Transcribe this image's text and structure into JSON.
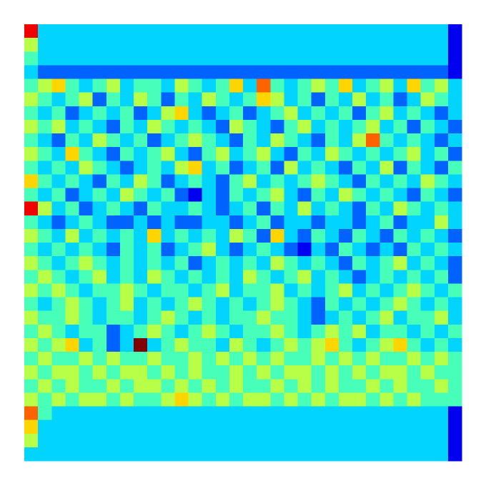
{
  "chart_data": {
    "type": "heatmap",
    "vlim": [
      0,
      9
    ],
    "colormap": "jet",
    "values": [
      [
        8,
        3,
        3,
        3,
        3,
        3,
        3,
        3,
        3,
        3,
        3,
        3,
        3,
        3,
        3,
        3,
        3,
        3,
        3,
        3,
        3,
        3,
        3,
        3,
        3,
        3,
        3,
        3,
        3,
        3,
        3,
        1
      ],
      [
        5,
        3,
        3,
        3,
        3,
        3,
        3,
        3,
        3,
        3,
        3,
        3,
        3,
        3,
        3,
        3,
        3,
        3,
        3,
        3,
        3,
        3,
        3,
        3,
        3,
        3,
        3,
        3,
        3,
        3,
        3,
        1
      ],
      [
        4,
        3,
        3,
        3,
        3,
        3,
        3,
        3,
        3,
        3,
        3,
        3,
        3,
        3,
        3,
        3,
        3,
        3,
        3,
        3,
        3,
        3,
        3,
        3,
        3,
        3,
        3,
        3,
        3,
        3,
        3,
        1
      ],
      [
        3,
        2,
        2,
        2,
        2,
        2,
        2,
        2,
        2,
        2,
        2,
        2,
        2,
        2,
        2,
        2,
        2,
        2,
        2,
        2,
        2,
        2,
        2,
        2,
        2,
        2,
        2,
        2,
        2,
        2,
        2,
        1
      ],
      [
        4,
        5,
        6,
        4,
        3,
        4,
        5,
        3,
        4,
        4,
        3,
        5,
        4,
        3,
        4,
        6,
        3,
        7,
        4,
        3,
        4,
        5,
        4,
        6,
        3,
        4,
        5,
        3,
        6,
        4,
        5,
        3
      ],
      [
        5,
        4,
        3,
        4,
        5,
        2,
        4,
        3,
        5,
        4,
        2,
        4,
        3,
        5,
        4,
        3,
        4,
        6,
        5,
        3,
        4,
        2,
        4,
        3,
        5,
        3,
        4,
        2,
        3,
        5,
        4,
        3
      ],
      [
        4,
        3,
        4,
        2,
        3,
        4,
        3,
        4,
        2,
        3,
        5,
        6,
        3,
        2,
        3,
        4,
        2,
        3,
        4,
        5,
        3,
        4,
        3,
        4,
        2,
        4,
        5,
        3,
        4,
        3,
        2,
        3
      ],
      [
        5,
        4,
        5,
        3,
        4,
        3,
        2,
        4,
        3,
        5,
        4,
        3,
        4,
        3,
        2,
        5,
        4,
        3,
        2,
        4,
        5,
        3,
        4,
        3,
        4,
        5,
        3,
        4,
        2,
        4,
        3,
        2
      ],
      [
        4,
        3,
        2,
        4,
        3,
        5,
        4,
        3,
        4,
        2,
        3,
        4,
        5,
        4,
        3,
        2,
        4,
        3,
        5,
        4,
        3,
        2,
        4,
        3,
        5,
        7,
        4,
        3,
        4,
        3,
        2,
        3
      ],
      [
        5,
        4,
        3,
        6,
        4,
        3,
        2,
        4,
        3,
        4,
        5,
        3,
        2,
        4,
        5,
        3,
        4,
        5,
        3,
        2,
        4,
        3,
        5,
        4,
        3,
        4,
        3,
        4,
        5,
        3,
        4,
        2
      ],
      [
        4,
        3,
        4,
        3,
        5,
        4,
        3,
        2,
        3,
        4,
        3,
        5,
        6,
        3,
        4,
        2,
        3,
        4,
        2,
        5,
        3,
        4,
        3,
        2,
        4,
        3,
        5,
        2,
        4,
        3,
        2,
        4
      ],
      [
        6,
        4,
        3,
        4,
        3,
        2,
        4,
        3,
        5,
        4,
        2,
        3,
        4,
        3,
        2,
        4,
        5,
        3,
        4,
        3,
        4,
        5,
        4,
        3,
        2,
        4,
        3,
        4,
        3,
        5,
        4,
        3
      ],
      [
        4,
        3,
        4,
        2,
        3,
        4,
        3,
        5,
        4,
        3,
        4,
        2,
        1,
        3,
        2,
        4,
        3,
        4,
        5,
        3,
        2,
        4,
        3,
        5,
        4,
        3,
        4,
        3,
        2,
        4,
        3,
        2
      ],
      [
        8,
        5,
        3,
        4,
        2,
        3,
        4,
        3,
        2,
        4,
        3,
        3,
        4,
        3,
        2,
        3,
        4,
        2,
        4,
        3,
        5,
        3,
        4,
        3,
        2,
        4,
        3,
        5,
        4,
        3,
        4,
        3
      ],
      [
        4,
        3,
        2,
        3,
        4,
        3,
        2,
        2,
        3,
        2,
        3,
        2,
        2,
        3,
        3,
        2,
        3,
        4,
        2,
        3,
        3,
        2,
        3,
        3,
        2,
        3,
        4,
        2,
        3,
        3,
        5,
        3
      ],
      [
        5,
        4,
        3,
        5,
        3,
        4,
        3,
        4,
        3,
        6,
        3,
        4,
        3,
        4,
        3,
        5,
        4,
        2,
        6,
        3,
        2,
        4,
        3,
        2,
        4,
        3,
        2,
        4,
        3,
        4,
        3,
        2
      ],
      [
        4,
        3,
        4,
        3,
        4,
        3,
        2,
        4,
        3,
        4,
        2,
        3,
        4,
        5,
        3,
        2,
        3,
        4,
        3,
        2,
        1,
        3,
        2,
        4,
        3,
        2,
        3,
        2,
        4,
        3,
        4,
        3
      ],
      [
        5,
        4,
        3,
        4,
        5,
        4,
        3,
        4,
        3,
        4,
        3,
        4,
        2,
        3,
        4,
        3,
        4,
        3,
        5,
        4,
        3,
        4,
        3,
        2,
        4,
        3,
        4,
        5,
        3,
        4,
        3,
        2
      ],
      [
        4,
        5,
        4,
        3,
        4,
        5,
        3,
        4,
        3,
        5,
        4,
        3,
        4,
        3,
        4,
        3,
        5,
        4,
        3,
        4,
        5,
        3,
        4,
        3,
        2,
        3,
        4,
        3,
        4,
        3,
        4,
        2
      ],
      [
        5,
        4,
        5,
        4,
        3,
        4,
        4,
        5,
        4,
        3,
        4,
        4,
        3,
        4,
        5,
        3,
        4,
        4,
        5,
        3,
        4,
        3,
        4,
        5,
        3,
        4,
        3,
        4,
        5,
        4,
        3,
        4
      ],
      [
        4,
        3,
        4,
        5,
        4,
        3,
        4,
        5,
        3,
        4,
        3,
        4,
        5,
        4,
        3,
        4,
        3,
        4,
        5,
        4,
        3,
        2,
        4,
        3,
        4,
        3,
        4,
        5,
        4,
        3,
        4,
        3
      ],
      [
        5,
        4,
        4,
        5,
        4,
        3,
        4,
        4,
        3,
        4,
        5,
        4,
        3,
        4,
        3,
        4,
        4,
        5,
        4,
        4,
        3,
        2,
        3,
        4,
        3,
        4,
        5,
        3,
        4,
        4,
        5,
        3
      ],
      [
        4,
        5,
        4,
        3,
        4,
        4,
        2,
        3,
        4,
        5,
        4,
        3,
        4,
        5,
        4,
        3,
        4,
        4,
        5,
        4,
        3,
        4,
        5,
        4,
        5,
        3,
        4,
        4,
        3,
        4,
        3,
        4
      ],
      [
        5,
        4,
        5,
        6,
        3,
        4,
        2,
        3,
        9,
        3,
        4,
        5,
        4,
        4,
        3,
        5,
        4,
        3,
        4,
        5,
        4,
        5,
        6,
        4,
        3,
        4,
        5,
        6,
        4,
        3,
        4,
        3
      ],
      [
        4,
        5,
        4,
        4,
        5,
        4,
        5,
        4,
        4,
        5,
        4,
        4,
        5,
        4,
        5,
        4,
        5,
        4,
        5,
        4,
        4,
        5,
        4,
        5,
        4,
        5,
        4,
        4,
        5,
        4,
        5,
        4
      ],
      [
        5,
        4,
        5,
        5,
        4,
        5,
        4,
        5,
        5,
        4,
        5,
        4,
        5,
        4,
        4,
        5,
        4,
        5,
        4,
        5,
        5,
        4,
        5,
        4,
        5,
        4,
        5,
        5,
        4,
        5,
        4,
        4
      ],
      [
        4,
        5,
        4,
        5,
        4,
        4,
        5,
        4,
        5,
        5,
        4,
        5,
        4,
        5,
        4,
        5,
        4,
        4,
        5,
        4,
        5,
        4,
        5,
        4,
        4,
        5,
        4,
        5,
        4,
        4,
        5,
        4
      ],
      [
        5,
        4,
        5,
        4,
        5,
        5,
        4,
        5,
        4,
        4,
        5,
        6,
        5,
        4,
        5,
        4,
        5,
        5,
        4,
        5,
        4,
        5,
        4,
        5,
        5,
        4,
        5,
        4,
        5,
        4,
        4,
        4
      ],
      [
        7,
        4,
        3,
        3,
        3,
        3,
        3,
        3,
        3,
        3,
        3,
        3,
        3,
        3,
        3,
        3,
        3,
        3,
        3,
        3,
        3,
        3,
        3,
        3,
        3,
        3,
        3,
        3,
        3,
        3,
        3,
        1
      ],
      [
        6,
        3,
        3,
        3,
        3,
        3,
        3,
        3,
        3,
        3,
        3,
        3,
        3,
        3,
        3,
        3,
        3,
        3,
        3,
        3,
        3,
        3,
        3,
        3,
        3,
        3,
        3,
        3,
        3,
        3,
        3,
        1
      ],
      [
        5,
        3,
        3,
        3,
        3,
        3,
        3,
        3,
        3,
        3,
        3,
        3,
        3,
        3,
        3,
        3,
        3,
        3,
        3,
        3,
        3,
        3,
        3,
        3,
        3,
        3,
        3,
        3,
        3,
        3,
        3,
        1
      ],
      [
        3,
        3,
        3,
        3,
        3,
        3,
        3,
        3,
        3,
        3,
        3,
        3,
        3,
        3,
        3,
        3,
        3,
        3,
        3,
        3,
        3,
        3,
        3,
        3,
        3,
        3,
        3,
        3,
        3,
        3,
        3,
        1
      ]
    ]
  }
}
